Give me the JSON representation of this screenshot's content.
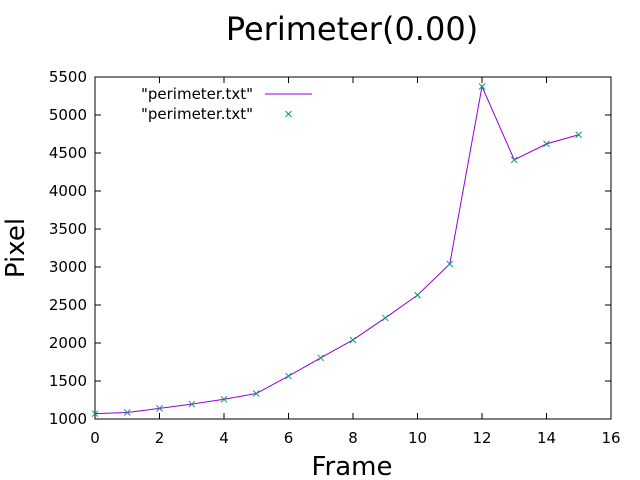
{
  "chart_data": {
    "type": "line",
    "title": "Perimeter(0.00)",
    "xlabel": "Frame",
    "ylabel": "Pixel",
    "xlim": [
      0,
      16
    ],
    "ylim": [
      1000,
      5500
    ],
    "xticks": [
      0,
      2,
      4,
      6,
      8,
      10,
      12,
      14,
      16
    ],
    "yticks": [
      1000,
      1500,
      2000,
      2500,
      3000,
      3500,
      4000,
      4500,
      5000,
      5500
    ],
    "grid": false,
    "legend_position": "top-left",
    "series": [
      {
        "name": "\"perimeter.txt\"",
        "style": "lines",
        "color": "#9400d3",
        "x": [
          0,
          1,
          2,
          3,
          4,
          5,
          6,
          7,
          8,
          9,
          10,
          11,
          12,
          13,
          14,
          15
        ],
        "y": [
          1070,
          1085,
          1140,
          1195,
          1260,
          1335,
          1565,
          1805,
          2040,
          2330,
          2630,
          3040,
          5375,
          4410,
          4620,
          4740
        ]
      },
      {
        "name": "\"perimeter.txt\"",
        "style": "points",
        "color": "#009e73",
        "x": [
          0,
          1,
          2,
          3,
          4,
          5,
          6,
          7,
          8,
          9,
          10,
          11,
          12,
          13,
          14,
          15
        ],
        "y": [
          1070,
          1085,
          1140,
          1195,
          1260,
          1335,
          1565,
          1805,
          2040,
          2330,
          2630,
          3040,
          5375,
          4410,
          4620,
          4740
        ]
      }
    ]
  }
}
